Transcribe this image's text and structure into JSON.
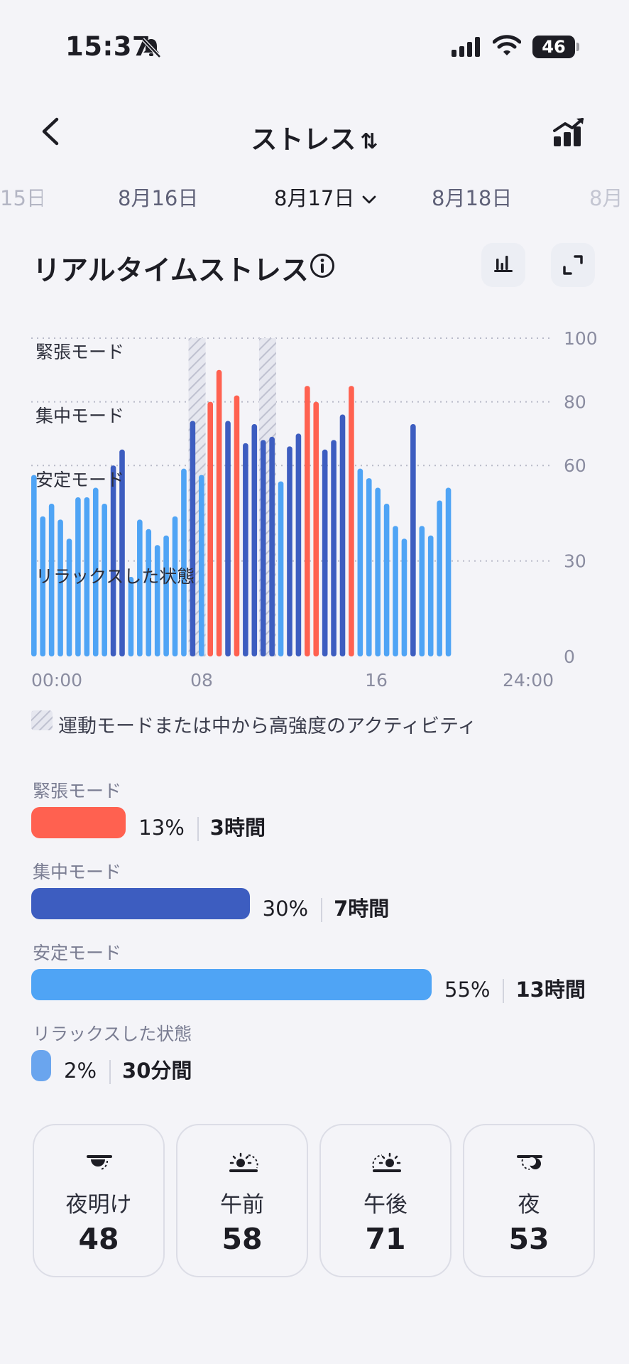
{
  "status_bar": {
    "time": "15:37",
    "battery": "46"
  },
  "header": {
    "title": "ストレス",
    "sort_glyph": "⇅"
  },
  "dates": {
    "prev_far": "15日",
    "prev": "8月16日",
    "current": "8月17日",
    "next": "8月18日",
    "next_far": "8月"
  },
  "section": {
    "title": "リアルタイムストレス"
  },
  "chart_data": {
    "type": "bar",
    "x_tick_labels": [
      "00:00",
      "08",
      "16",
      "24:00"
    ],
    "y_ticks": [
      0,
      30,
      60,
      80,
      100
    ],
    "ylim": [
      0,
      100
    ],
    "zone_labels": [
      "緊張モード",
      "集中モード",
      "安定モード",
      "リラックスした状態"
    ],
    "values": [
      57,
      44,
      48,
      43,
      37,
      50,
      50,
      53,
      48,
      60,
      65,
      25,
      43,
      40,
      35,
      38,
      44,
      59,
      74,
      57,
      80,
      90,
      74,
      82,
      67,
      73,
      68,
      69,
      55,
      66,
      70,
      85,
      80,
      65,
      68,
      76,
      85,
      59,
      56,
      53,
      48,
      41,
      37,
      73,
      41,
      38,
      49,
      53
    ],
    "levels": [
      "calm",
      "calm",
      "calm",
      "calm",
      "calm",
      "calm",
      "calm",
      "calm",
      "calm",
      "focus",
      "focus",
      "calm",
      "calm",
      "calm",
      "calm",
      "calm",
      "calm",
      "calm",
      "focus",
      "calm",
      "tense",
      "tense",
      "focus",
      "tense",
      "focus",
      "focus",
      "focus",
      "focus",
      "calm",
      "focus",
      "focus",
      "tense",
      "tense",
      "focus",
      "focus",
      "focus",
      "tense",
      "calm",
      "calm",
      "calm",
      "calm",
      "calm",
      "calm",
      "focus",
      "calm",
      "calm",
      "calm",
      "calm"
    ],
    "activity_bars": [
      18,
      19,
      26,
      27
    ],
    "colors": {
      "tense": "#ff6150",
      "focus": "#3d5dc0",
      "calm": "#4fa4f5",
      "relax": "#6aa5ee"
    }
  },
  "legend": {
    "activity": "運動モードまたは中から高強度のアクティビティ"
  },
  "distribution": [
    {
      "label": "緊張モード",
      "fraction": 0.13,
      "percent": "13%",
      "duration": "3時間",
      "color": "#ff6150"
    },
    {
      "label": "集中モード",
      "fraction": 0.3,
      "percent": "30%",
      "duration": "7時間",
      "color": "#3d5dc0"
    },
    {
      "label": "安定モード",
      "fraction": 0.55,
      "percent": "55%",
      "duration": "13時間",
      "color": "#4fa4f5"
    },
    {
      "label": "リラックスした状態",
      "fraction": 0.02,
      "percent": "2%",
      "duration": "30分間",
      "color": "#6aa5ee"
    }
  ],
  "periods": [
    {
      "label": "夜明け",
      "value": "48",
      "icon": "dawn-icon"
    },
    {
      "label": "午前",
      "value": "58",
      "icon": "morning-sun-icon"
    },
    {
      "label": "午後",
      "value": "71",
      "icon": "afternoon-sun-icon"
    },
    {
      "label": "夜",
      "value": "53",
      "icon": "night-moon-icon"
    }
  ]
}
